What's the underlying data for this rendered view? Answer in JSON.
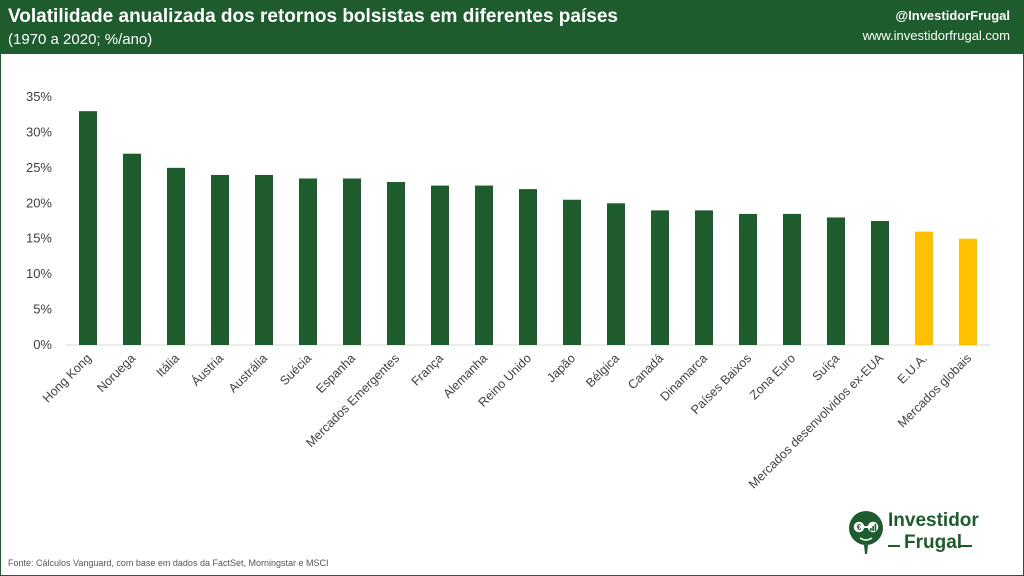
{
  "header": {
    "title": "Volatilidade anualizada dos retornos bolsistas em diferentes países",
    "subtitle": "(1970 a 2020; %/ano)",
    "handle": "@InvestidorFrugal",
    "website": "www.investidorfrugal.com"
  },
  "source": "Fonte:  Cálculos Vanguard, com base em dados da FactSet,  Morningstar e MSCI",
  "logo": {
    "line1": "Investidor",
    "line2": "Frugal"
  },
  "colors": {
    "header": "#1e5c2e",
    "bar_default": "#1e5c2e",
    "bar_highlight": "#ffc000"
  },
  "chart_data": {
    "type": "bar",
    "categories": [
      "Hong Kong",
      "Noruega",
      "Itália",
      "Áustria",
      "Austrália",
      "Suécia",
      "Espanha",
      "Mercados Emergentes",
      "França",
      "Alemanha",
      "Reino Unido",
      "Japão",
      "Bélgica",
      "Canadá",
      "Dinamarca",
      "Países Baixos",
      "Zona Euro",
      "Suíça",
      "Mercados desenvolvidos ex-EUA",
      "E.U.A.",
      "Mercados globais"
    ],
    "values": [
      33,
      27,
      25,
      24,
      24,
      23.5,
      23.5,
      23,
      22.5,
      22.5,
      22,
      20.5,
      20,
      19,
      19,
      18.5,
      18.5,
      18,
      17.5,
      16,
      15
    ],
    "highlighted": [
      "E.U.A.",
      "Mercados globais"
    ],
    "ylim": [
      0,
      35
    ],
    "yticks": [
      0,
      5,
      10,
      15,
      20,
      25,
      30,
      35
    ],
    "ytick_labels": [
      "0%",
      "5%",
      "10%",
      "15%",
      "20%",
      "25%",
      "30%",
      "35%"
    ],
    "grid": false,
    "legend": "none"
  }
}
